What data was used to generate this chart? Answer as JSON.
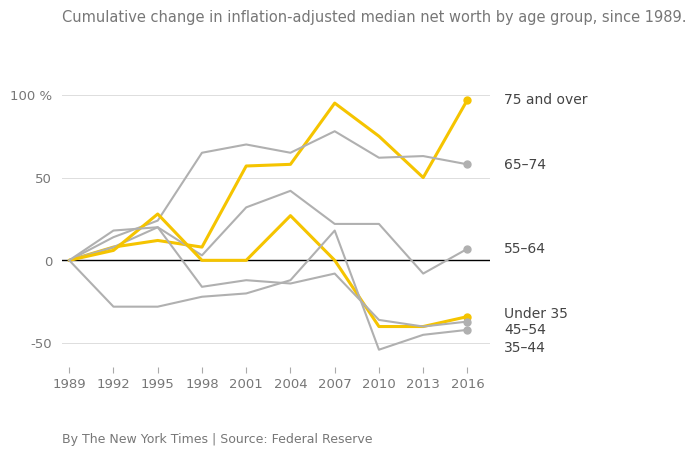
{
  "title": "Cumulative change in inflation-adjusted median net worth by age group, since 1989.",
  "footer": "By The New York Times | Source: Federal Reserve",
  "years": [
    1989,
    1992,
    1995,
    1998,
    2001,
    2004,
    2007,
    2010,
    2013,
    2016
  ],
  "series": [
    {
      "label": "75 and over",
      "color": "#f5c400",
      "linewidth": 2.2,
      "is_gold": true,
      "dot_end": true,
      "values": [
        0,
        8,
        12,
        8,
        57,
        58,
        95,
        75,
        50,
        97
      ]
    },
    {
      "label": "65–74",
      "color": "#b0b0b0",
      "linewidth": 1.5,
      "is_gold": false,
      "dot_end": true,
      "values": [
        0,
        14,
        24,
        65,
        70,
        65,
        78,
        62,
        63,
        58
      ]
    },
    {
      "label": "55–64",
      "color": "#b0b0b0",
      "linewidth": 1.5,
      "is_gold": false,
      "dot_end": true,
      "values": [
        0,
        8,
        20,
        3,
        32,
        42,
        22,
        22,
        -8,
        7
      ]
    },
    {
      "label": "Under 35",
      "color": "#f5c400",
      "linewidth": 2.2,
      "is_gold": true,
      "dot_end": true,
      "values": [
        0,
        6,
        28,
        0,
        0,
        27,
        0,
        -40,
        -40,
        -34
      ]
    },
    {
      "label": "45–54",
      "color": "#b0b0b0",
      "linewidth": 1.5,
      "is_gold": false,
      "dot_end": true,
      "values": [
        0,
        18,
        20,
        -16,
        -12,
        -14,
        -8,
        -36,
        -40,
        -37
      ]
    },
    {
      "label": "35–44",
      "color": "#b0b0b0",
      "linewidth": 1.5,
      "is_gold": false,
      "dot_end": true,
      "values": [
        0,
        -28,
        -28,
        -22,
        -20,
        -12,
        18,
        -54,
        -45,
        -42
      ]
    }
  ],
  "yticks": [
    -50,
    0,
    50,
    100
  ],
  "ylim": [
    -68,
    118
  ],
  "background_color": "#ffffff",
  "zero_line_color": "#000000",
  "title_fontsize": 10.5,
  "label_fontsize": 10,
  "tick_fontsize": 9.5,
  "footer_fontsize": 9,
  "title_color": "#777777",
  "tick_color": "#777777",
  "label_color": "#444444",
  "footer_color": "#777777",
  "grid_color": "#dddddd"
}
